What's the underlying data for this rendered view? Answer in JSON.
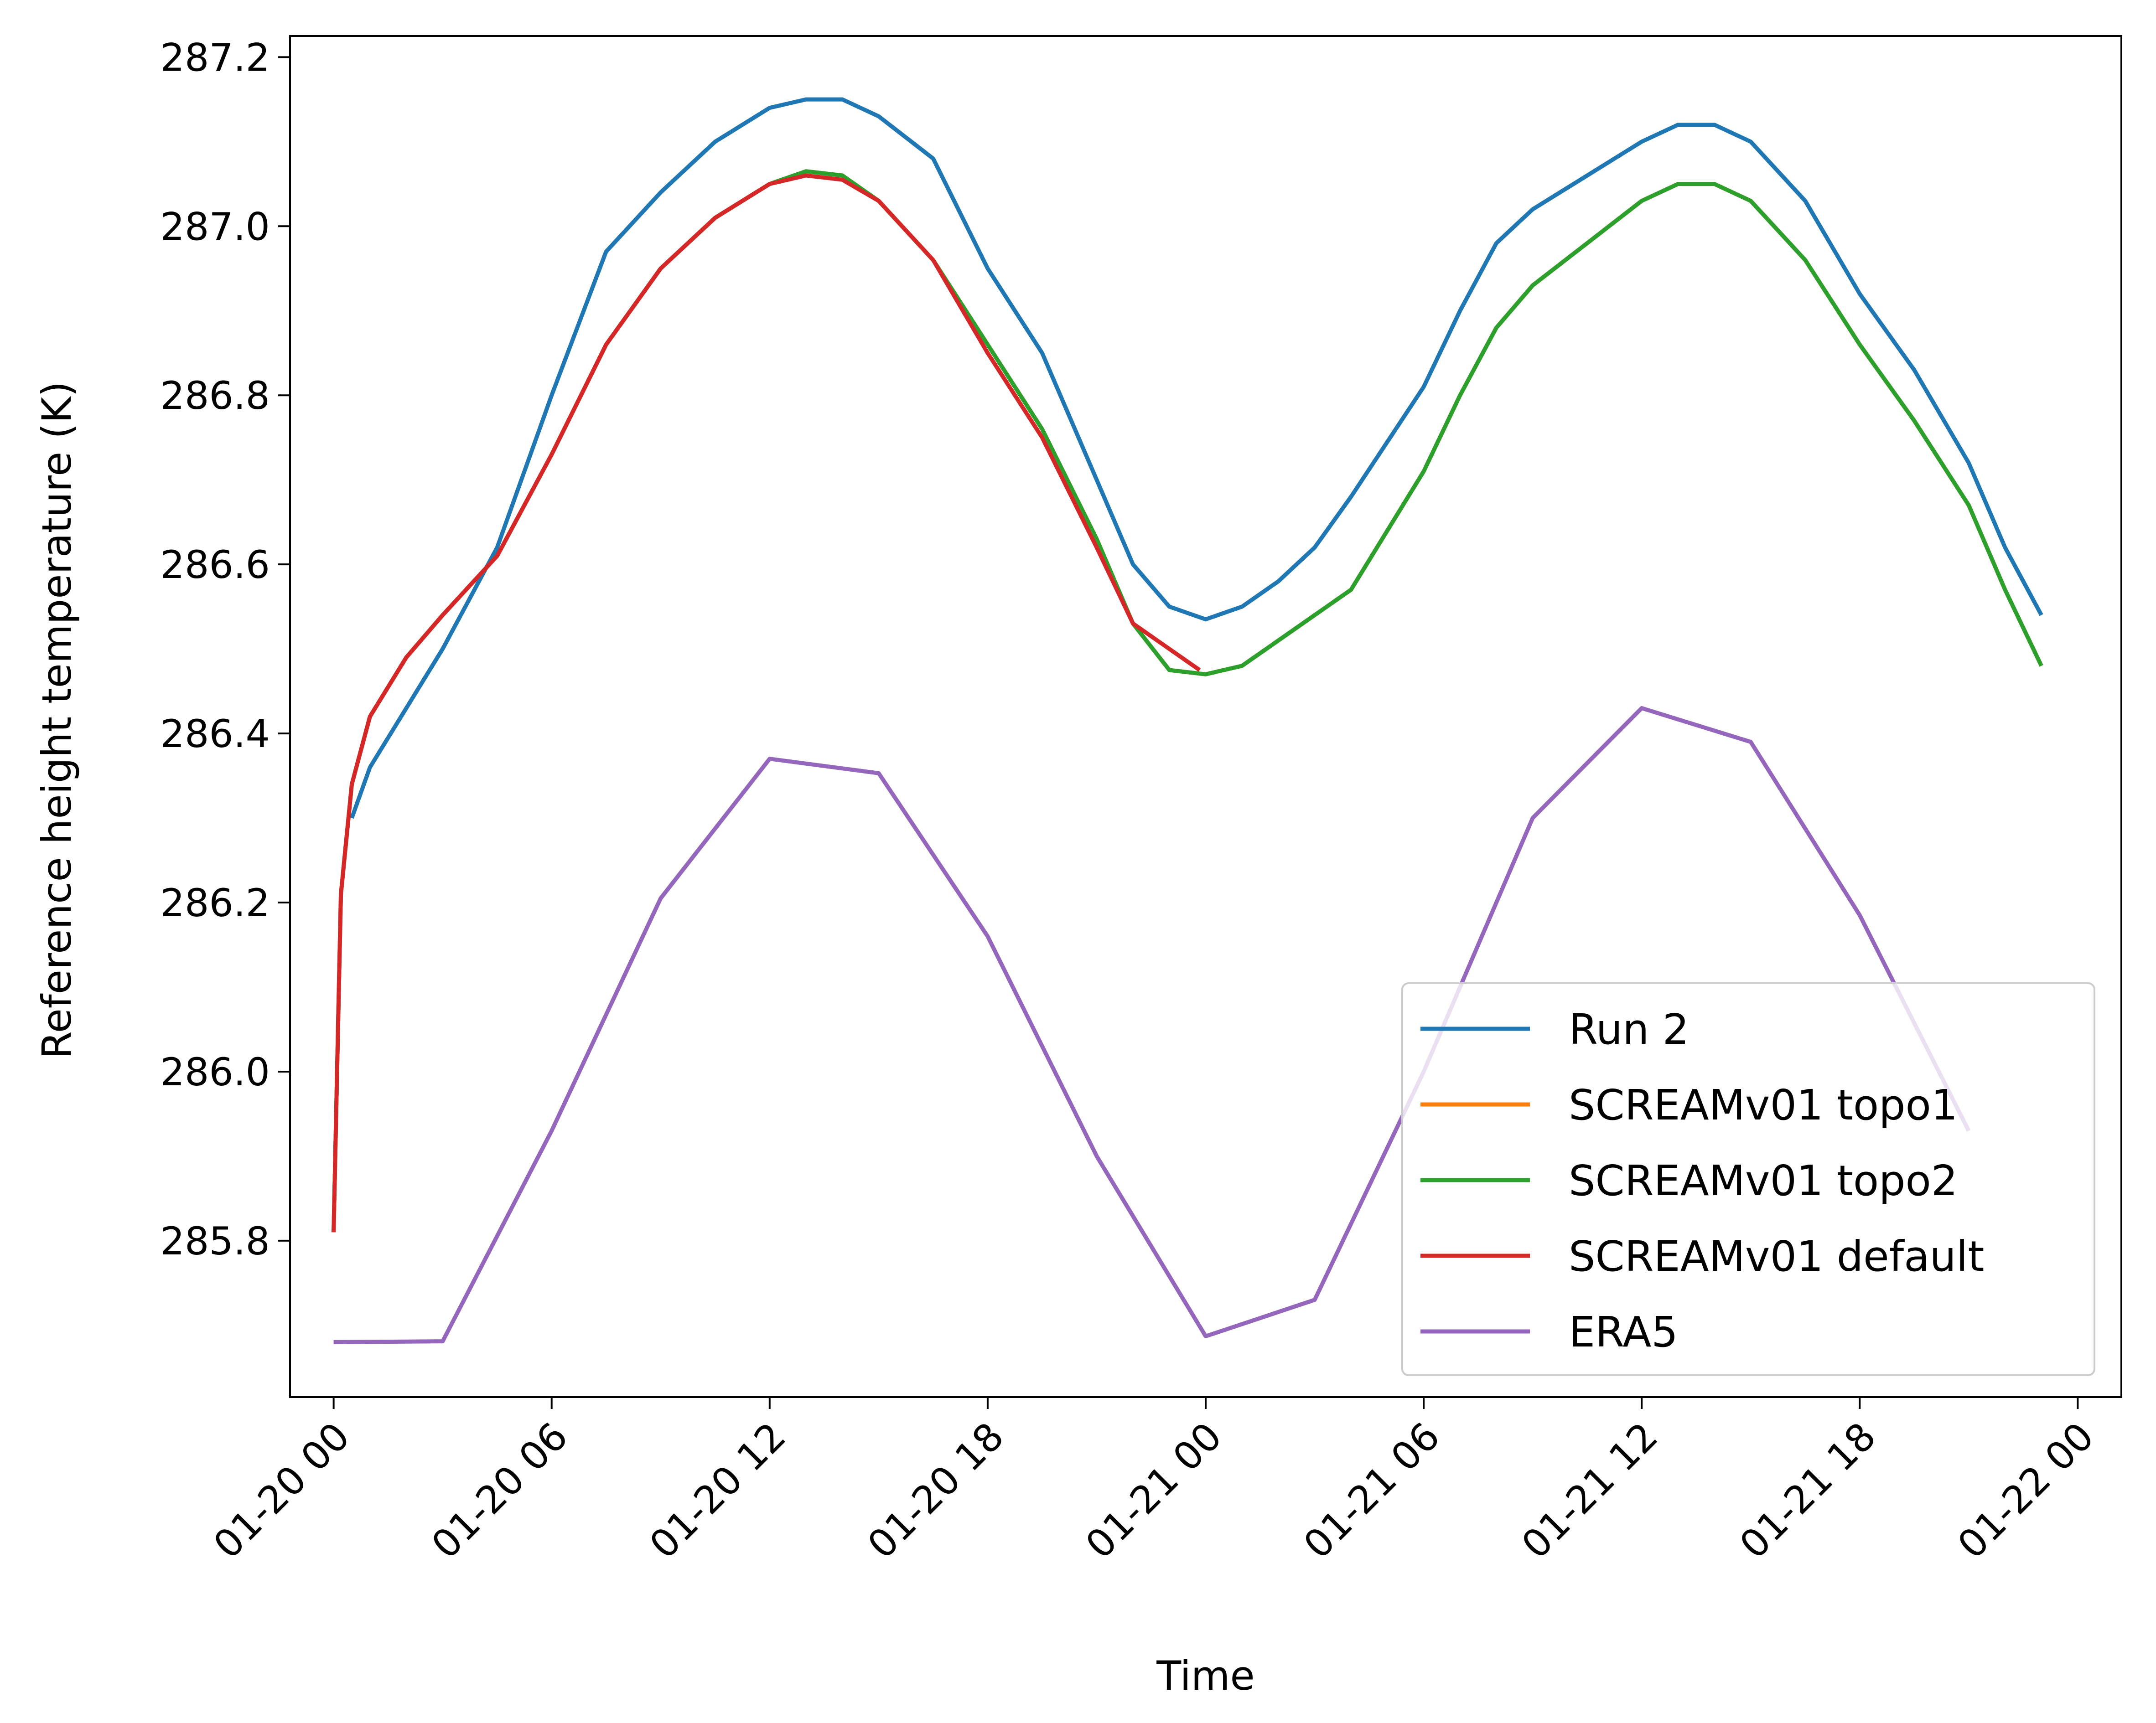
{
  "chart_data": {
    "type": "line",
    "xlabel": "Time",
    "ylabel": "Reference height temperature (K)",
    "xlim": [
      "01-19 22:48",
      "01-22 01:12"
    ],
    "ylim": [
      285.615,
      287.225
    ],
    "x_ticks": [
      "01-20 00",
      "01-20 06",
      "01-20 12",
      "01-20 18",
      "01-21 00",
      "01-21 06",
      "01-21 12",
      "01-21 18",
      "01-22 00"
    ],
    "y_ticks": [
      "285.8",
      "286.0",
      "286.2",
      "286.4",
      "286.6",
      "286.8",
      "287.0",
      "287.2"
    ],
    "grid": false,
    "legend_placement": "lower-right",
    "series": [
      {
        "name": "Run 2",
        "color": "#1f77b4",
        "x": [
          "01-20 00:30",
          "01-20 01:00",
          "01-20 02:00",
          "01-20 03:00",
          "01-20 04:30",
          "01-20 06:00",
          "01-20 07:30",
          "01-20 09:00",
          "01-20 10:30",
          "01-20 12:00",
          "01-20 13:00",
          "01-20 14:00",
          "01-20 15:00",
          "01-20 16:30",
          "01-20 18:00",
          "01-20 19:30",
          "01-20 21:00",
          "01-20 22:00",
          "01-20 23:00",
          "01-21 00:00",
          "01-21 01:00",
          "01-21 02:00",
          "01-21 03:00",
          "01-21 04:00",
          "01-21 06:00",
          "01-21 07:00",
          "01-21 08:00",
          "01-21 09:00",
          "01-21 10:30",
          "01-21 12:00",
          "01-21 13:00",
          "01-21 14:00",
          "01-21 15:00",
          "01-21 16:30",
          "01-21 18:00",
          "01-21 19:30",
          "01-21 21:00",
          "01-21 22:00",
          "01-21 23:00"
        ],
        "y": [
          286.3,
          286.36,
          286.43,
          286.5,
          286.62,
          286.8,
          286.97,
          287.04,
          287.1,
          287.14,
          287.15,
          287.15,
          287.13,
          287.08,
          286.95,
          286.85,
          286.7,
          286.6,
          286.55,
          286.535,
          286.55,
          286.58,
          286.62,
          286.68,
          286.81,
          286.9,
          286.98,
          287.02,
          287.06,
          287.1,
          287.12,
          287.12,
          287.1,
          287.03,
          286.92,
          286.83,
          286.72,
          286.62,
          286.54
        ]
      },
      {
        "name": "SCREAMv01 topo1",
        "color": "#ff7f0e",
        "x": [
          "01-20 00:00",
          "01-20 00:12",
          "01-20 00:30",
          "01-20 01:00",
          "01-20 02:00",
          "01-20 03:00",
          "01-20 04:30",
          "01-20 06:00",
          "01-20 07:30",
          "01-20 09:00",
          "01-20 10:30",
          "01-20 12:00",
          "01-20 13:00",
          "01-20 14:00",
          "01-20 15:00",
          "01-20 16:30",
          "01-20 18:00",
          "01-20 19:30",
          "01-20 21:00",
          "01-20 22:00",
          "01-20 23:00",
          "01-21 00:00",
          "01-21 01:00",
          "01-21 02:00",
          "01-21 03:00",
          "01-21 04:00",
          "01-21 06:00",
          "01-21 07:00",
          "01-21 08:00",
          "01-21 09:00",
          "01-21 10:30",
          "01-21 12:00",
          "01-21 13:00",
          "01-21 14:00",
          "01-21 15:00",
          "01-21 16:30",
          "01-21 18:00",
          "01-21 19:30",
          "01-21 21:00",
          "01-21 22:00",
          "01-21 23:00"
        ],
        "y": [
          285.81,
          286.21,
          286.34,
          286.42,
          286.49,
          286.54,
          286.61,
          286.73,
          286.86,
          286.95,
          287.01,
          287.05,
          287.065,
          287.06,
          287.03,
          286.96,
          286.86,
          286.76,
          286.63,
          286.53,
          286.475,
          286.47,
          286.48,
          286.51,
          286.54,
          286.57,
          286.71,
          286.8,
          286.88,
          286.93,
          286.98,
          287.03,
          287.05,
          287.05,
          287.03,
          286.96,
          286.86,
          286.77,
          286.67,
          286.57,
          286.48
        ]
      },
      {
        "name": "SCREAMv01 topo2",
        "color": "#2ca02c",
        "x": [
          "01-20 00:00",
          "01-20 00:12",
          "01-20 00:30",
          "01-20 01:00",
          "01-20 02:00",
          "01-20 03:00",
          "01-20 04:30",
          "01-20 06:00",
          "01-20 07:30",
          "01-20 09:00",
          "01-20 10:30",
          "01-20 12:00",
          "01-20 13:00",
          "01-20 14:00",
          "01-20 15:00",
          "01-20 16:30",
          "01-20 18:00",
          "01-20 19:30",
          "01-20 21:00",
          "01-20 22:00",
          "01-20 23:00",
          "01-21 00:00",
          "01-21 01:00",
          "01-21 02:00",
          "01-21 03:00",
          "01-21 04:00",
          "01-21 06:00",
          "01-21 07:00",
          "01-21 08:00",
          "01-21 09:00",
          "01-21 10:30",
          "01-21 12:00",
          "01-21 13:00",
          "01-21 14:00",
          "01-21 15:00",
          "01-21 16:30",
          "01-21 18:00",
          "01-21 19:30",
          "01-21 21:00",
          "01-21 22:00",
          "01-21 23:00"
        ],
        "y": [
          285.81,
          286.21,
          286.34,
          286.42,
          286.49,
          286.54,
          286.61,
          286.73,
          286.86,
          286.95,
          287.01,
          287.05,
          287.065,
          287.06,
          287.03,
          286.96,
          286.86,
          286.76,
          286.63,
          286.53,
          286.475,
          286.47,
          286.48,
          286.51,
          286.54,
          286.57,
          286.71,
          286.8,
          286.88,
          286.93,
          286.98,
          287.03,
          287.05,
          287.05,
          287.03,
          286.96,
          286.86,
          286.77,
          286.67,
          286.57,
          286.48
        ]
      },
      {
        "name": "SCREAMv01 default",
        "color": "#d62728",
        "x": [
          "01-20 00:00",
          "01-20 00:12",
          "01-20 00:30",
          "01-20 01:00",
          "01-20 02:00",
          "01-20 03:00",
          "01-20 04:30",
          "01-20 06:00",
          "01-20 07:30",
          "01-20 09:00",
          "01-20 10:30",
          "01-20 12:00",
          "01-20 13:00",
          "01-20 14:00",
          "01-20 15:00",
          "01-20 16:30",
          "01-20 18:00",
          "01-20 19:30",
          "01-20 21:00",
          "01-20 22:00",
          "01-20 23:50"
        ],
        "y": [
          285.81,
          286.21,
          286.34,
          286.42,
          286.49,
          286.54,
          286.61,
          286.73,
          286.86,
          286.95,
          287.01,
          287.05,
          287.06,
          287.055,
          287.03,
          286.96,
          286.85,
          286.75,
          286.62,
          286.53,
          286.475
        ]
      },
      {
        "name": "ERA5",
        "color": "#9467bd",
        "x": [
          "01-20 00:00",
          "01-20 03:00",
          "01-20 06:00",
          "01-20 09:00",
          "01-20 12:00",
          "01-20 15:00",
          "01-20 18:00",
          "01-20 21:00",
          "01-21 00:00",
          "01-21 03:00",
          "01-21 06:00",
          "01-21 09:00",
          "01-21 12:00",
          "01-21 15:00",
          "01-21 18:00",
          "01-21 21:00"
        ],
        "y": [
          285.68,
          285.681,
          285.93,
          286.205,
          286.37,
          286.353,
          286.16,
          285.9,
          285.687,
          285.73,
          286.0,
          286.3,
          286.43,
          286.39,
          286.185,
          285.93
        ]
      }
    ]
  }
}
